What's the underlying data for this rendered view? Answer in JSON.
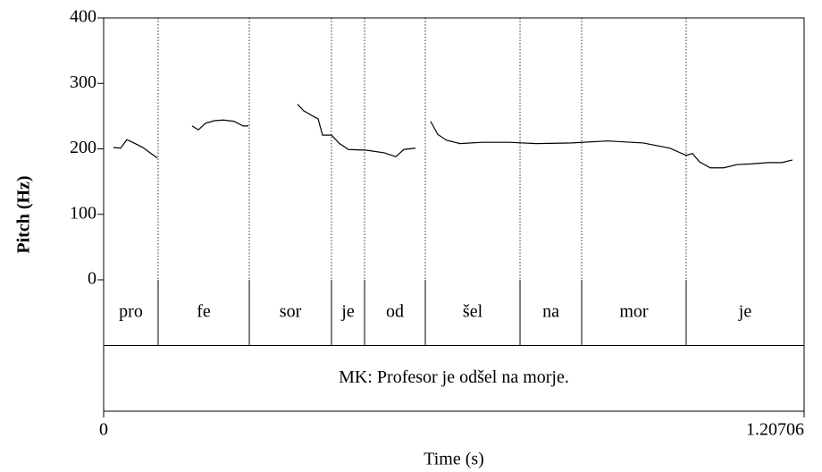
{
  "chart_data": {
    "type": "line",
    "ylabel": "Pitch (Hz)",
    "xlabel": "Time (s)",
    "xlim": [
      0,
      1.20706
    ],
    "xticks": [
      0,
      1.20706
    ],
    "ylim": [
      0,
      400
    ],
    "yticks": [
      0,
      100,
      200,
      300,
      400
    ],
    "series": [
      {
        "name": "Pitch",
        "color": "#000000",
        "x": [
          0.0169,
          0.0293,
          0.04,
          0.0523,
          0.0677,
          0.0831,
          0.0924,
          null,
          0.1524,
          0.1632,
          0.1755,
          0.1909,
          0.2063,
          0.2248,
          0.2402,
          0.2494,
          null,
          0.3341,
          0.3449,
          0.3603,
          0.3695,
          0.3772,
          0.3926,
          0.4065,
          0.4219,
          0.4527,
          0.4835,
          0.5035,
          0.5173,
          0.5373,
          null,
          0.5635,
          0.5758,
          0.5912,
          0.6143,
          0.6528,
          0.699,
          0.7452,
          0.8067,
          0.8683,
          0.9299,
          0.9761,
          1.0038,
          1.0146,
          1.0269,
          1.0454,
          1.0685,
          1.0916,
          1.1147,
          1.1455,
          1.1686,
          1.187
        ],
        "values": [
          202,
          201,
          214,
          209,
          202,
          192,
          186,
          null,
          235,
          229,
          239,
          243,
          244,
          242,
          235,
          235,
          null,
          268,
          258,
          250,
          246,
          221,
          221,
          208,
          199,
          198,
          194,
          188,
          199,
          201,
          null,
          242,
          222,
          213,
          208,
          210,
          210,
          208,
          209,
          212,
          209,
          201,
          190,
          193,
          180,
          171,
          171,
          176,
          177,
          179,
          179,
          183
        ]
      }
    ],
    "tiers": [
      {
        "boundaries": [
          0.0939,
          0.251,
          0.3926,
          0.4496,
          0.5543,
          0.7175,
          0.8237,
          1.0038
        ],
        "labels": [
          "pro",
          "fe",
          "sor",
          "je",
          "od",
          "šel",
          "na",
          "mor",
          "je"
        ]
      },
      {
        "boundaries": [],
        "labels": [
          "MK: Profesor je odšel na morje."
        ]
      }
    ]
  }
}
